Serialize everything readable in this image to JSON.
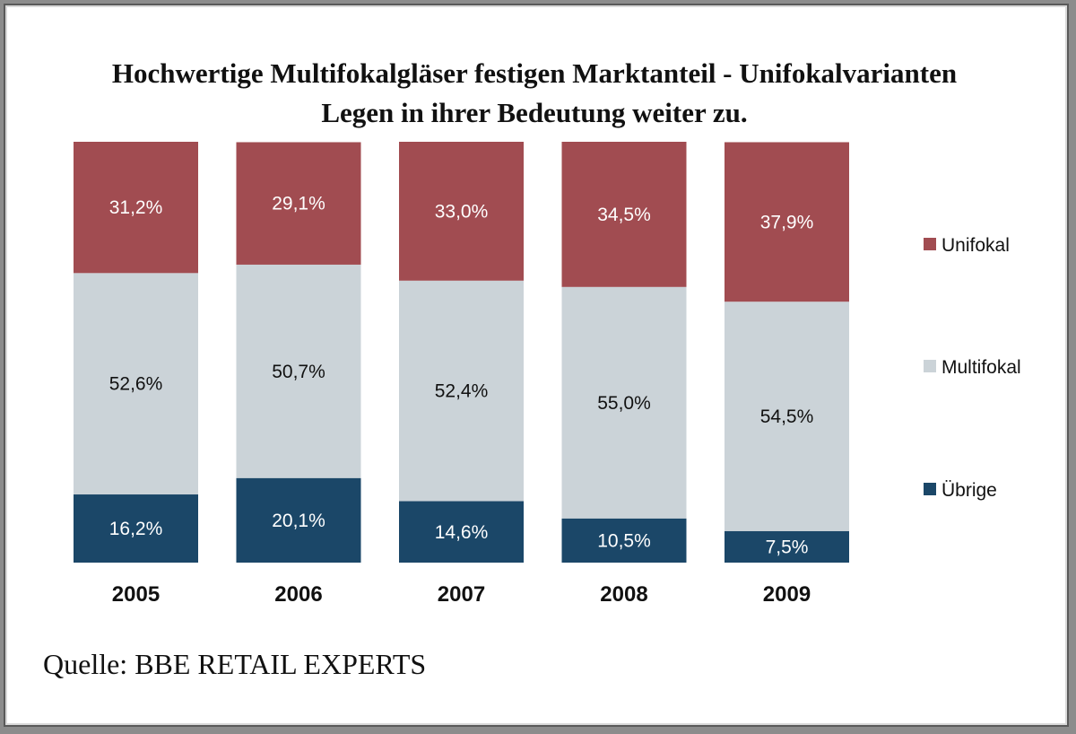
{
  "title": {
    "line1": "Hochwertige Multifokalgläser festigen Marktanteil - Unifokalvarianten",
    "line2": "Legen in ihrer Bedeutung weiter zu."
  },
  "source": "Quelle: BBE RETAIL EXPERTS",
  "chart_data": {
    "type": "bar",
    "stacked": true,
    "normalized": true,
    "categories": [
      "2005",
      "2006",
      "2007",
      "2008",
      "2009"
    ],
    "series": [
      {
        "name": "Übrige",
        "color": "#1b4768",
        "values": [
          16.2,
          20.1,
          14.6,
          10.5,
          7.5
        ],
        "labels": [
          "16,2%",
          "20,1%",
          "14,6%",
          "10,5%",
          "7,5%"
        ],
        "label_color": "#ffffff"
      },
      {
        "name": "Multifokal",
        "color": "#cbd3d8",
        "values": [
          52.6,
          50.7,
          52.4,
          55.0,
          54.5
        ],
        "labels": [
          "52,6%",
          "50,7%",
          "52,4%",
          "55,0%",
          "54,5%"
        ],
        "label_color": "#111111"
      },
      {
        "name": "Unifokal",
        "color": "#a14c51",
        "values": [
          31.2,
          29.1,
          33.0,
          34.5,
          37.9
        ],
        "labels": [
          "31,2%",
          "29,1%",
          "33,0%",
          "34,5%",
          "37,9%"
        ],
        "label_color": "#ffffff"
      }
    ],
    "legend": {
      "position": "right",
      "order": [
        "Unifokal",
        "Multifokal",
        "Übrige"
      ]
    },
    "ylim": [
      0,
      100
    ],
    "grid": false,
    "xlabel": "",
    "ylabel": ""
  }
}
